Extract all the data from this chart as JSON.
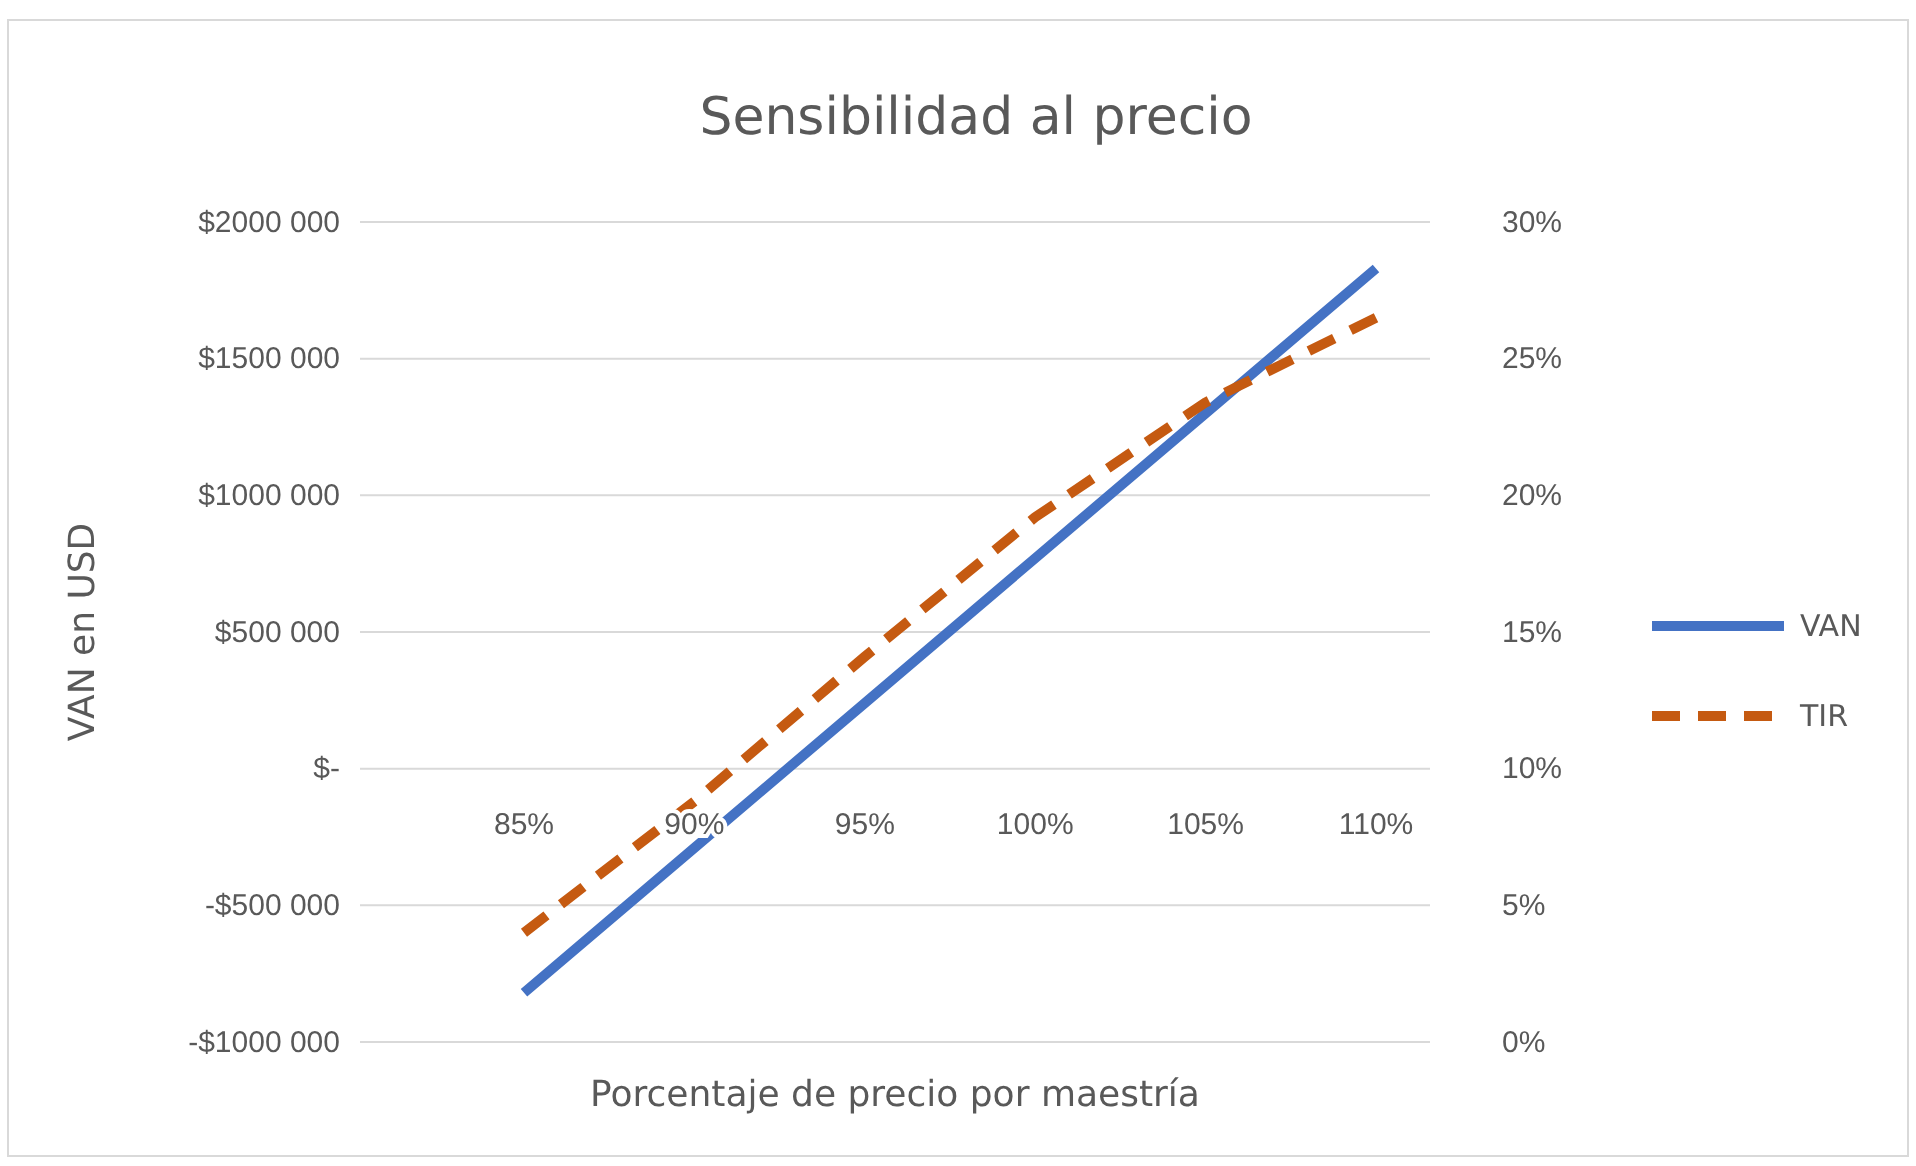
{
  "chart_data": {
    "type": "line",
    "title": "Sensibilidad  al precio",
    "xlabel": "Porcentaje de precio por maestría",
    "ylabel": "VAN en USD",
    "categories": [
      "85%",
      "90%",
      "95%",
      "100%",
      "105%",
      "110%"
    ],
    "series": [
      {
        "name": "VAN",
        "color": "#4472c4",
        "values": [
          -820000,
          -290000,
          240000,
          770000,
          1300000,
          1830000
        ],
        "line_style": "solid"
      },
      {
        "name": "TIR",
        "color": "#c55a11",
        "values": [
          4,
          8.8,
          14.1,
          19.2,
          23.4,
          26.5
        ],
        "line_style": "dashed",
        "axis": "y2"
      }
    ],
    "ylim": [
      -1000000,
      2000000
    ],
    "yticks": [
      {
        "value": -1000000,
        "label": "-$1000 000"
      },
      {
        "value": -500000,
        "label": "-$500 000"
      },
      {
        "value": 0,
        "label": "$-"
      },
      {
        "value": 500000,
        "label": "$500 000"
      },
      {
        "value": 1000000,
        "label": "$1000 000"
      },
      {
        "value": 1500000,
        "label": "$1500 000"
      },
      {
        "value": 2000000,
        "label": "$2000 000"
      }
    ],
    "y2lim": [
      0,
      30
    ],
    "y2ticks": [
      {
        "value": 0,
        "label": "0%"
      },
      {
        "value": 5,
        "label": "5%"
      },
      {
        "value": 10,
        "label": "10%"
      },
      {
        "value": 15,
        "label": "15%"
      },
      {
        "value": 20,
        "label": "20%"
      },
      {
        "value": 25,
        "label": "25%"
      },
      {
        "value": 30,
        "label": "30%"
      }
    ],
    "grid": "y",
    "legend": "right",
    "marker": "none"
  }
}
